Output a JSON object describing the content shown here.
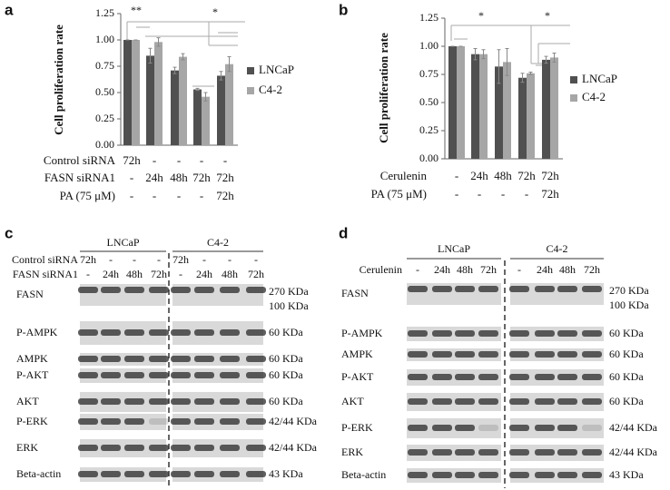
{
  "chart_data": [
    {
      "type": "bar",
      "label": "a",
      "y_label": "Cell proliferation rate",
      "categories": [
        null,
        null,
        null,
        null,
        null
      ],
      "series": [
        {
          "name": "LNCaP",
          "color": "#505050",
          "values": [
            1.0,
            0.85,
            0.71,
            0.53,
            0.66
          ],
          "errors": [
            0,
            0.07,
            0.03,
            0.01,
            0.04
          ]
        },
        {
          "name": "C4-2",
          "color": "#a6a6a6",
          "values": [
            1.0,
            0.98,
            0.84,
            0.46,
            0.77
          ],
          "errors": [
            0,
            0.04,
            0.03,
            0.04,
            0.07
          ]
        }
      ],
      "ylim": [
        0,
        1.25
      ],
      "yticks": [
        {
          "value": 0,
          "label": "0.00"
        },
        {
          "value": 0.25,
          "label": "0.25"
        },
        {
          "value": 0.5,
          "label": "0.50"
        },
        {
          "value": 0.75,
          "label": "0.75"
        },
        {
          "value": 1,
          "label": "1.00"
        },
        {
          "value": 1.25,
          "label": "1.25"
        }
      ],
      "annotations": [
        "**",
        "*"
      ],
      "legend": "right",
      "conditions": [
        {
          "label": "Control siRNA",
          "cells": [
            "72h",
            "-",
            "-",
            "-",
            "-"
          ]
        },
        {
          "label": "FASN siRNA1",
          "cells": [
            "-",
            "24h",
            "48h",
            "72h",
            "72h"
          ]
        },
        {
          "label": "PA (75 μM)",
          "cells": [
            "-",
            "-",
            "-",
            "-",
            "72h"
          ]
        }
      ]
    },
    {
      "type": "bar",
      "label": "b",
      "y_label": "Cell proliferation rate",
      "categories": [
        null,
        null,
        null,
        null,
        null
      ],
      "series": [
        {
          "name": "LNCaP",
          "color": "#505050",
          "values": [
            1.0,
            0.93,
            0.82,
            0.72,
            0.88
          ],
          "errors": [
            0,
            0.05,
            0.15,
            0.04,
            0.03
          ]
        },
        {
          "name": "C4-2",
          "color": "#a6a6a6",
          "values": [
            1.0,
            0.93,
            0.86,
            0.76,
            0.9
          ],
          "errors": [
            0,
            0.04,
            0.12,
            0.01,
            0.04
          ]
        }
      ],
      "ylim": [
        0,
        1.25
      ],
      "yticks": [
        {
          "value": 0,
          "label": "0.00"
        },
        {
          "value": 0.25,
          "label": "0.25"
        },
        {
          "value": 0.5,
          "label": "0.50"
        },
        {
          "value": 0.75,
          "label": "0.75"
        },
        {
          "value": 1,
          "label": "1.00"
        },
        {
          "value": 1.25,
          "label": "1.25"
        }
      ],
      "annotations": [
        "*",
        "*"
      ],
      "legend": "right",
      "conditions": [
        {
          "label": "Cerulenin",
          "cells": [
            "-",
            "24h",
            "48h",
            "72h",
            "72h"
          ]
        },
        {
          "label": "PA (75 μM)",
          "cells": [
            "-",
            "-",
            "-",
            "-",
            "72h"
          ]
        }
      ]
    }
  ],
  "blots": [
    {
      "label": "c",
      "groups": [
        "LNCaP",
        "C4-2"
      ],
      "conditions": [
        {
          "label": "Control siRNA",
          "cells": [
            "72h",
            "-",
            "-",
            "-",
            "72h",
            "-",
            "-",
            "-"
          ]
        },
        {
          "label": "FASN siRNA1",
          "cells": [
            "-",
            "24h",
            "48h",
            "72h",
            "-",
            "24h",
            "48h",
            "72h"
          ]
        }
      ],
      "rows": [
        {
          "protein": "FASN",
          "sizes": [
            "270 KDa",
            "100 KDa"
          ]
        },
        {
          "protein": "P-AMPK",
          "sizes": [
            "60 KDa"
          ]
        },
        {
          "protein": "AMPK",
          "sizes": [
            "60 KDa"
          ]
        },
        {
          "protein": "P-AKT",
          "sizes": [
            "60 KDa"
          ]
        },
        {
          "protein": "AKT",
          "sizes": [
            "60 KDa"
          ]
        },
        {
          "protein": "P-ERK",
          "sizes": [
            "42/44 KDa"
          ]
        },
        {
          "protein": "ERK",
          "sizes": [
            "42/44 KDa"
          ]
        },
        {
          "protein": "Beta-actin",
          "sizes": [
            "43 KDa"
          ]
        }
      ]
    },
    {
      "label": "d",
      "groups": [
        "LNCaP",
        "C4-2"
      ],
      "conditions": [
        {
          "label": "Cerulenin",
          "cells": [
            "-",
            "24h",
            "48h",
            "72h",
            "-",
            "24h",
            "48h",
            "72h"
          ]
        }
      ],
      "rows": [
        {
          "protein": "FASN",
          "sizes": [
            "270 KDa",
            "100 KDa"
          ]
        },
        {
          "protein": "P-AMPK",
          "sizes": [
            "60 KDa"
          ]
        },
        {
          "protein": "AMPK",
          "sizes": [
            "60 KDa"
          ]
        },
        {
          "protein": "P-AKT",
          "sizes": [
            "60 KDa"
          ]
        },
        {
          "protein": "AKT",
          "sizes": [
            "60 KDa"
          ]
        },
        {
          "protein": "P-ERK",
          "sizes": [
            "42/44 KDa"
          ]
        },
        {
          "protein": "ERK",
          "sizes": [
            "42/44 KDa"
          ]
        },
        {
          "protein": "Beta-actin",
          "sizes": [
            "43 KDa"
          ]
        }
      ]
    }
  ]
}
